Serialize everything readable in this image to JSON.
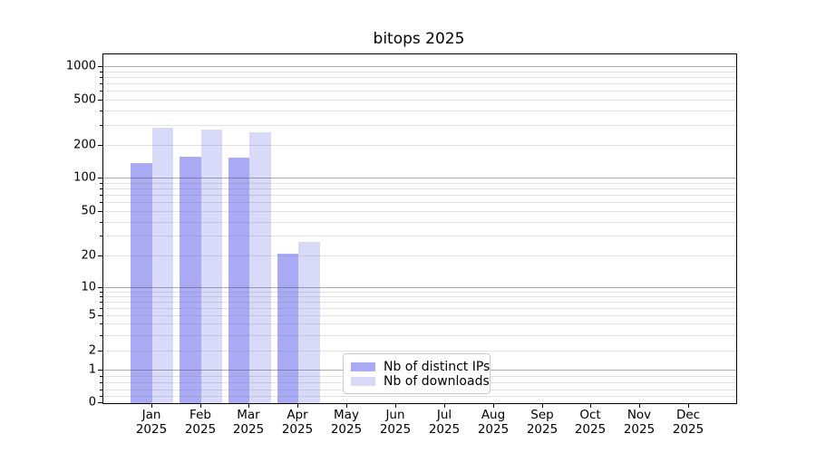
{
  "title": "bitops 2025",
  "chart_data": {
    "type": "bar",
    "title": "bitops 2025",
    "year": "2025",
    "months": [
      "Jan",
      "Feb",
      "Mar",
      "Apr",
      "May",
      "Jun",
      "Jul",
      "Aug",
      "Sep",
      "Oct",
      "Nov",
      "Dec"
    ],
    "series": [
      {
        "name": "Nb of distinct IPs",
        "color": "#a9a9f4",
        "values": [
          140,
          160,
          155,
          21,
          0,
          0,
          0,
          0,
          0,
          0,
          0,
          0
        ]
      },
      {
        "name": "Nb of downloads",
        "color": "#d9d9f9",
        "values": [
          290,
          280,
          265,
          27,
          0,
          0,
          0,
          0,
          0,
          0,
          0,
          0
        ]
      }
    ],
    "yscale": "asinh-log",
    "y_ticks": [
      0,
      1,
      2,
      5,
      10,
      20,
      50,
      100,
      200,
      500,
      1000
    ],
    "y_tick_labels": [
      "0",
      "1",
      "2",
      "5",
      "10",
      "20",
      "50",
      "100",
      "200",
      "500",
      "1000"
    ],
    "ylim": [
      0,
      1300
    ],
    "grid": "horizontal, major at powers of 10, minor at 2-9 per decade",
    "legend_position": "lower center",
    "colors": {
      "grid_major": "#b0b0b0",
      "grid_minor": "#e3e3e3",
      "axis": "#000000"
    }
  }
}
